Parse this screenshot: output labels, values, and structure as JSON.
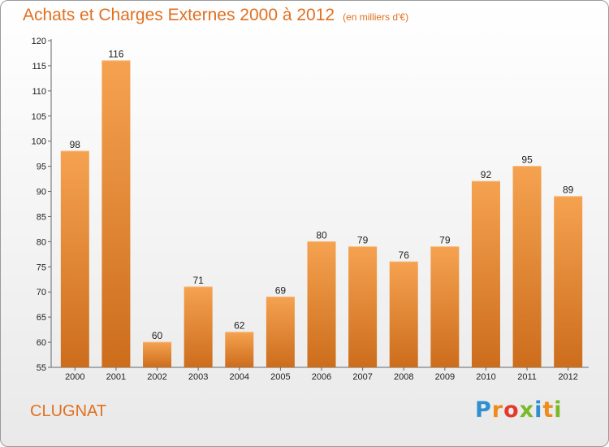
{
  "header": {
    "title": "Achats et Charges Externes 2000 à 2012",
    "subtitle": "(en milliers d'€)"
  },
  "footer": {
    "commune": "CLUGNAT",
    "brand": "Proxiti",
    "brand_letters": [
      "P",
      "r",
      "o",
      "x",
      "i",
      "t",
      "i"
    ],
    "brand_colors": [
      "#2f8fd0",
      "#f08a1c",
      "#e23b2b",
      "#7ab929",
      "#2f8fd0",
      "#f08a1c",
      "#7ab929"
    ]
  },
  "colors": {
    "bar_light": "#f5a250",
    "bar_dark": "#cc6d1c",
    "title": "#e07020",
    "axis": "#666666"
  },
  "chart_data": {
    "type": "bar",
    "title": "Achats et Charges Externes 2000 à 2012",
    "subtitle": "(en milliers d'€)",
    "xlabel": "",
    "ylabel": "",
    "categories": [
      "2000",
      "2001",
      "2002",
      "2003",
      "2004",
      "2005",
      "2006",
      "2007",
      "2008",
      "2009",
      "2010",
      "2011",
      "2012"
    ],
    "values": [
      98,
      116,
      60,
      71,
      62,
      69,
      80,
      79,
      76,
      79,
      92,
      95,
      89
    ],
    "ylim": [
      55,
      120
    ],
    "yticks": [
      55,
      60,
      65,
      70,
      75,
      80,
      85,
      90,
      95,
      100,
      105,
      110,
      115,
      120
    ],
    "grid": false,
    "legend": "none"
  }
}
